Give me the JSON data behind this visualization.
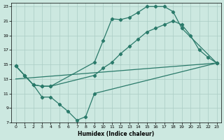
{
  "xlabel": "Humidex (Indice chaleur)",
  "background_color": "#cce8e0",
  "grid_color": "#aaccC4",
  "line_color": "#2a7a6a",
  "xlim": [
    -0.5,
    23.5
  ],
  "ylim": [
    7,
    23.5
  ],
  "xticks": [
    0,
    1,
    2,
    3,
    4,
    5,
    6,
    7,
    8,
    9,
    10,
    11,
    12,
    13,
    14,
    15,
    16,
    17,
    18,
    19,
    20,
    21,
    22,
    23
  ],
  "yticks": [
    7,
    9,
    11,
    13,
    15,
    17,
    19,
    21,
    23
  ],
  "line1_x": [
    0,
    1,
    2,
    3,
    4,
    9,
    10,
    11,
    12,
    13,
    14,
    15,
    16,
    17,
    18,
    19,
    23
  ],
  "line1_y": [
    14.8,
    13.5,
    12.2,
    12.0,
    12.0,
    15.3,
    18.3,
    21.3,
    21.2,
    21.5,
    22.2,
    23.0,
    23.0,
    23.0,
    22.3,
    20.0,
    15.2
  ],
  "line2_x": [
    0,
    1,
    2,
    3,
    4,
    9,
    10,
    11,
    12,
    13,
    14,
    15,
    16,
    17,
    18,
    19,
    20,
    21,
    22,
    23
  ],
  "line2_y": [
    14.8,
    13.5,
    12.2,
    12.0,
    12.0,
    13.5,
    14.5,
    15.3,
    16.5,
    17.5,
    18.5,
    19.5,
    20.0,
    20.5,
    21.0,
    20.5,
    19.0,
    17.0,
    16.0,
    15.2
  ],
  "line3_x": [
    0,
    1,
    2,
    3,
    4,
    5,
    6,
    7,
    8,
    9,
    23
  ],
  "line3_y": [
    14.8,
    13.5,
    12.2,
    10.5,
    10.5,
    9.5,
    8.5,
    7.3,
    7.8,
    11.0,
    15.2
  ],
  "line4_x": [
    0,
    23
  ],
  "line4_y": [
    13.0,
    15.2
  ]
}
